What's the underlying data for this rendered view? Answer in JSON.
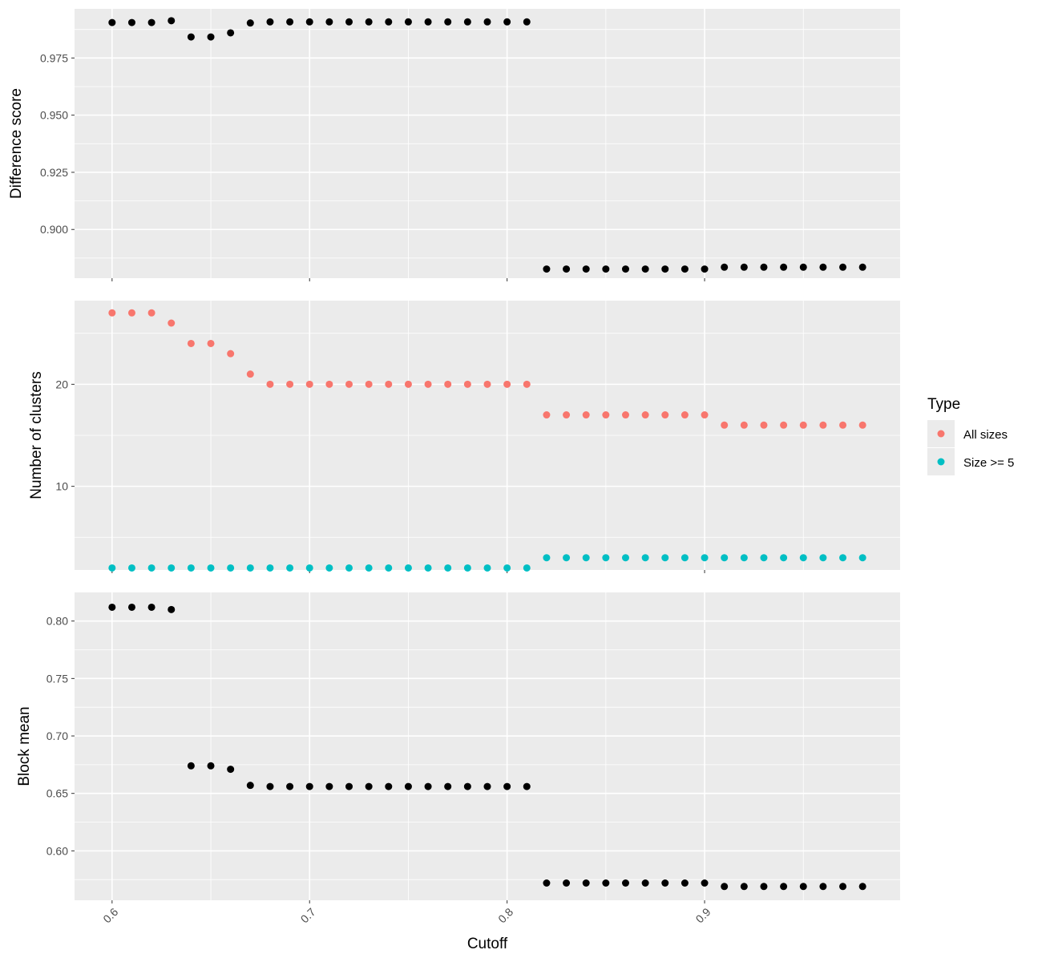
{
  "chart_data": {
    "type": "scatter",
    "xlabel": "Cutoff",
    "xlim": [
      0.581,
      0.999
    ],
    "x_ticks": [
      0.6,
      0.7,
      0.8,
      0.9
    ],
    "x_tick_labels": [
      "0.6",
      "0.7",
      "0.8",
      "0.9"
    ],
    "x": [
      0.6,
      0.61,
      0.62,
      0.63,
      0.64,
      0.65,
      0.66,
      0.67,
      0.68,
      0.69,
      0.7,
      0.71,
      0.72,
      0.73,
      0.74,
      0.75,
      0.76,
      0.77,
      0.78,
      0.79,
      0.8,
      0.81,
      0.82,
      0.83,
      0.84,
      0.85,
      0.86,
      0.87,
      0.88,
      0.89,
      0.9,
      0.91,
      0.92,
      0.93,
      0.94,
      0.95,
      0.96,
      0.97,
      0.98
    ],
    "grid": true,
    "legend": {
      "title": "Type",
      "position": "right",
      "entries": [
        {
          "label": "All sizes",
          "color": "#F8766D"
        },
        {
          "label": "Size >= 5",
          "color": "#00BFC4"
        }
      ]
    },
    "panels": [
      {
        "ylabel": "Difference score",
        "ylim": [
          0.8787,
          0.9965
        ],
        "y_ticks": [
          0.9,
          0.925,
          0.95,
          0.975
        ],
        "y_tick_labels": [
          "0.900",
          "0.925",
          "0.950",
          "0.975"
        ],
        "series": [
          {
            "color": "#000000",
            "values": [
              0.9905,
              0.9905,
              0.9905,
              0.9913,
              0.9842,
              0.9842,
              0.986,
              0.9903,
              0.9908,
              0.9908,
              0.9908,
              0.9908,
              0.9908,
              0.9908,
              0.9908,
              0.9908,
              0.9908,
              0.9908,
              0.9908,
              0.9908,
              0.9908,
              0.9908,
              0.8827,
              0.8827,
              0.8827,
              0.8827,
              0.8827,
              0.8827,
              0.8827,
              0.8827,
              0.8827,
              0.8835,
              0.8835,
              0.8835,
              0.8835,
              0.8835,
              0.8835,
              0.8835,
              0.8835
            ]
          }
        ]
      },
      {
        "ylabel": "Number of clusters",
        "ylim": [
          1.8,
          28.2
        ],
        "y_ticks": [
          10,
          20
        ],
        "y_tick_labels": [
          "10",
          "20"
        ],
        "series": [
          {
            "name": "All sizes",
            "color": "#F8766D",
            "values": [
              27,
              27,
              27,
              26,
              24,
              24,
              23,
              21,
              20,
              20,
              20,
              20,
              20,
              20,
              20,
              20,
              20,
              20,
              20,
              20,
              20,
              20,
              17,
              17,
              17,
              17,
              17,
              17,
              17,
              17,
              17,
              16,
              16,
              16,
              16,
              16,
              16,
              16,
              16
            ]
          },
          {
            "name": "Size >= 5",
            "color": "#00BFC4",
            "values": [
              2,
              2,
              2,
              2,
              2,
              2,
              2,
              2,
              2,
              2,
              2,
              2,
              2,
              2,
              2,
              2,
              2,
              2,
              2,
              2,
              2,
              2,
              3,
              3,
              3,
              3,
              3,
              3,
              3,
              3,
              3,
              3,
              3,
              3,
              3,
              3,
              3,
              3,
              3
            ]
          }
        ]
      },
      {
        "ylabel": "Block mean",
        "ylim": [
          0.557,
          0.8249
        ],
        "y_ticks": [
          0.6,
          0.65,
          0.7,
          0.75,
          0.8
        ],
        "y_tick_labels": [
          "0.60",
          "0.65",
          "0.70",
          "0.75",
          "0.80"
        ],
        "series": [
          {
            "color": "#000000",
            "values": [
              0.812,
              0.812,
              0.812,
              0.81,
              0.674,
              0.674,
              0.671,
              0.657,
              0.656,
              0.656,
              0.656,
              0.656,
              0.656,
              0.656,
              0.656,
              0.656,
              0.656,
              0.656,
              0.656,
              0.656,
              0.656,
              0.656,
              0.572,
              0.572,
              0.572,
              0.572,
              0.572,
              0.572,
              0.572,
              0.572,
              0.572,
              0.569,
              0.569,
              0.569,
              0.569,
              0.569,
              0.569,
              0.569,
              0.569
            ]
          }
        ]
      }
    ]
  }
}
